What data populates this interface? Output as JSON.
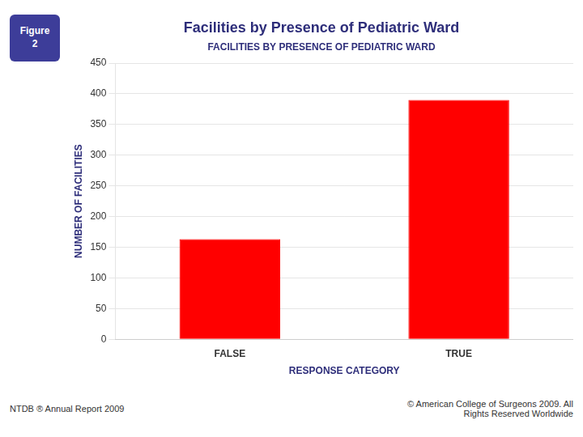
{
  "chart_data": {
    "type": "bar",
    "title": "Facilities by Presence of Pediatric Ward",
    "subtitle": "FACILITIES BY PRESENCE OF PEDIATRIC WARD",
    "xlabel": "RESPONSE CATEGORY",
    "ylabel": "NUMBER OF FACILITIES",
    "categories": [
      "FALSE",
      "TRUE"
    ],
    "values": [
      163,
      390
    ],
    "color": "#FF0000",
    "ylim": [
      0,
      450
    ],
    "yticks": [
      0,
      50,
      100,
      150,
      200,
      250,
      300,
      350,
      400,
      450
    ],
    "grid": true,
    "annotations": [
      "Figure",
      "2",
      "NTDB ® Annual Report 2009",
      "© American College of Surgeons 2009.  All\nRights Reserved Worldwide"
    ]
  }
}
